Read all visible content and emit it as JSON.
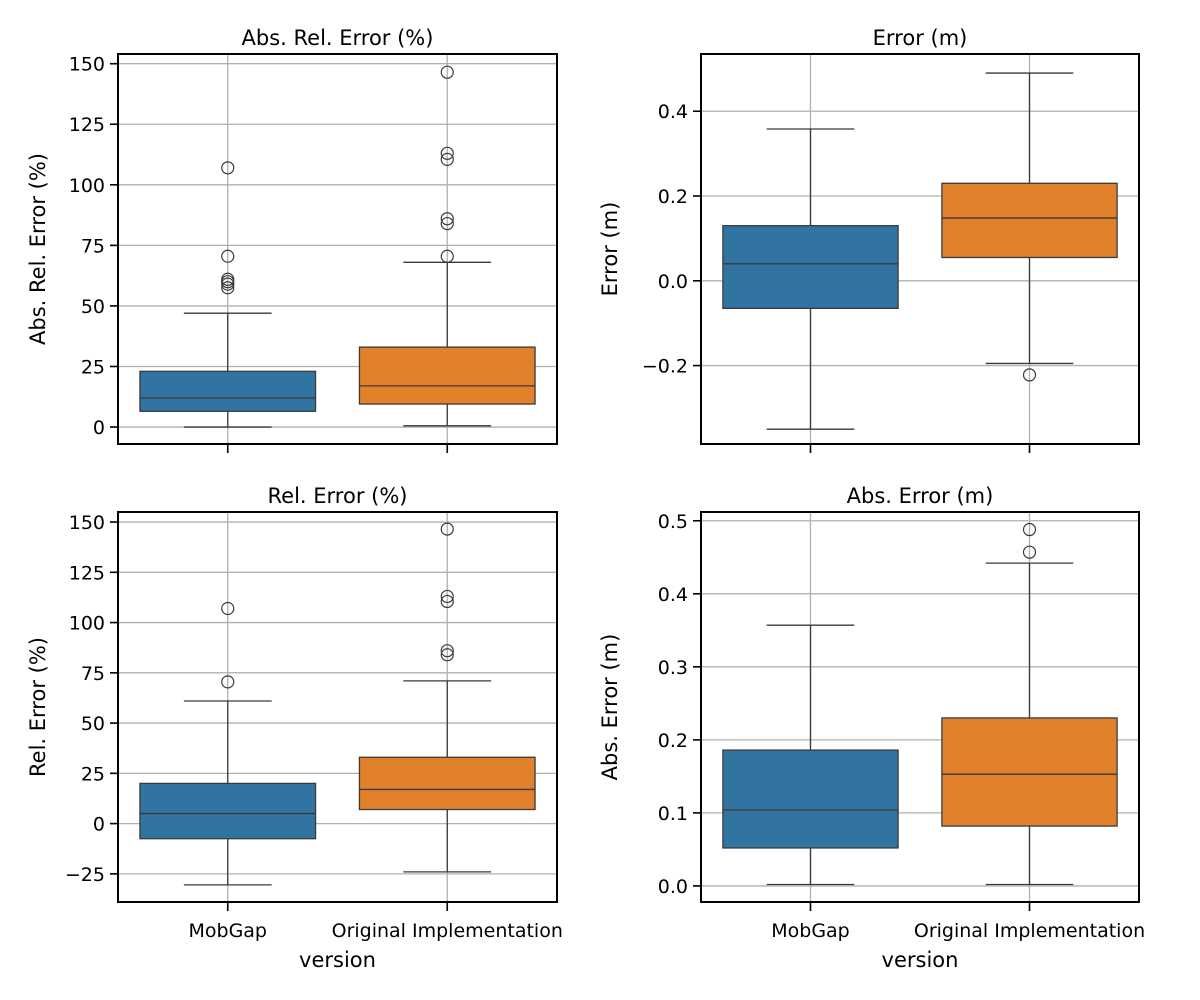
{
  "figure": {
    "shared_xlabel": "version",
    "categories": [
      "MobGap",
      "Original Implementation"
    ],
    "colors": {
      "MobGap": "#3274a1",
      "Original Implementation": "#e1812c"
    }
  },
  "chart_data": [
    {
      "type": "box",
      "title": "Abs. Rel. Error (%)",
      "xlabel": "",
      "ylabel": "Abs. Rel. Error (%)",
      "ylim": [
        -7,
        154
      ],
      "yticks": [
        0,
        25,
        50,
        75,
        100,
        125,
        150
      ],
      "ytick_labels": [
        "0",
        "25",
        "50",
        "75",
        "100",
        "125",
        "150"
      ],
      "grid": true,
      "categories": [
        "MobGap",
        "Original Implementation"
      ],
      "boxes": [
        {
          "name": "MobGap",
          "whislo": 0,
          "q1": 6.5,
          "med": 12,
          "q3": 23,
          "whishi": 47,
          "fliers": [
            57.5,
            59,
            60,
            61,
            70.5,
            107
          ]
        },
        {
          "name": "Original Implementation",
          "whislo": 0.5,
          "q1": 9.5,
          "med": 17,
          "q3": 33,
          "whishi": 68,
          "fliers": [
            70.5,
            84,
            86,
            110.5,
            113,
            146.5
          ]
        }
      ]
    },
    {
      "type": "box",
      "title": "Error (m)",
      "xlabel": "",
      "ylabel": "Error (m)",
      "ylim": [
        -0.385,
        0.535
      ],
      "yticks": [
        -0.2,
        0.0,
        0.2,
        0.4
      ],
      "ytick_labels": [
        "−0.2",
        "0.0",
        "0.2",
        "0.4"
      ],
      "grid": true,
      "categories": [
        "MobGap",
        "Original Implementation"
      ],
      "boxes": [
        {
          "name": "MobGap",
          "whislo": -0.35,
          "q1": -0.065,
          "med": 0.04,
          "q3": 0.13,
          "whishi": 0.358,
          "fliers": []
        },
        {
          "name": "Original Implementation",
          "whislo": -0.195,
          "q1": 0.055,
          "med": 0.148,
          "q3": 0.23,
          "whishi": 0.49,
          "fliers": [
            -0.222
          ]
        }
      ]
    },
    {
      "type": "box",
      "title": "Rel. Error (%)",
      "xlabel": "version",
      "ylabel": "Rel. Error (%)",
      "ylim": [
        -39,
        155
      ],
      "yticks": [
        -25,
        0,
        25,
        50,
        75,
        100,
        125,
        150
      ],
      "ytick_labels": [
        "−25",
        "0",
        "25",
        "50",
        "75",
        "100",
        "125",
        "150"
      ],
      "grid": true,
      "categories": [
        "MobGap",
        "Original Implementation"
      ],
      "boxes": [
        {
          "name": "MobGap",
          "whislo": -30.5,
          "q1": -7.5,
          "med": 5,
          "q3": 20,
          "whishi": 61,
          "fliers": [
            70.5,
            107
          ]
        },
        {
          "name": "Original Implementation",
          "whislo": -24,
          "q1": 7,
          "med": 17,
          "q3": 33,
          "whishi": 71,
          "fliers": [
            84,
            86,
            110.5,
            113,
            146.5
          ]
        }
      ]
    },
    {
      "type": "box",
      "title": "Abs. Error (m)",
      "xlabel": "version",
      "ylabel": "Abs. Error (m)",
      "ylim": [
        -0.022,
        0.512
      ],
      "yticks": [
        0.0,
        0.1,
        0.2,
        0.3,
        0.4,
        0.5
      ],
      "ytick_labels": [
        "0.0",
        "0.1",
        "0.2",
        "0.3",
        "0.4",
        "0.5"
      ],
      "grid": true,
      "categories": [
        "MobGap",
        "Original Implementation"
      ],
      "boxes": [
        {
          "name": "MobGap",
          "whislo": 0.002,
          "q1": 0.052,
          "med": 0.104,
          "q3": 0.186,
          "whishi": 0.357,
          "fliers": []
        },
        {
          "name": "Original Implementation",
          "whislo": 0.002,
          "q1": 0.082,
          "med": 0.153,
          "q3": 0.23,
          "whishi": 0.442,
          "fliers": [
            0.457,
            0.488
          ]
        }
      ]
    }
  ]
}
